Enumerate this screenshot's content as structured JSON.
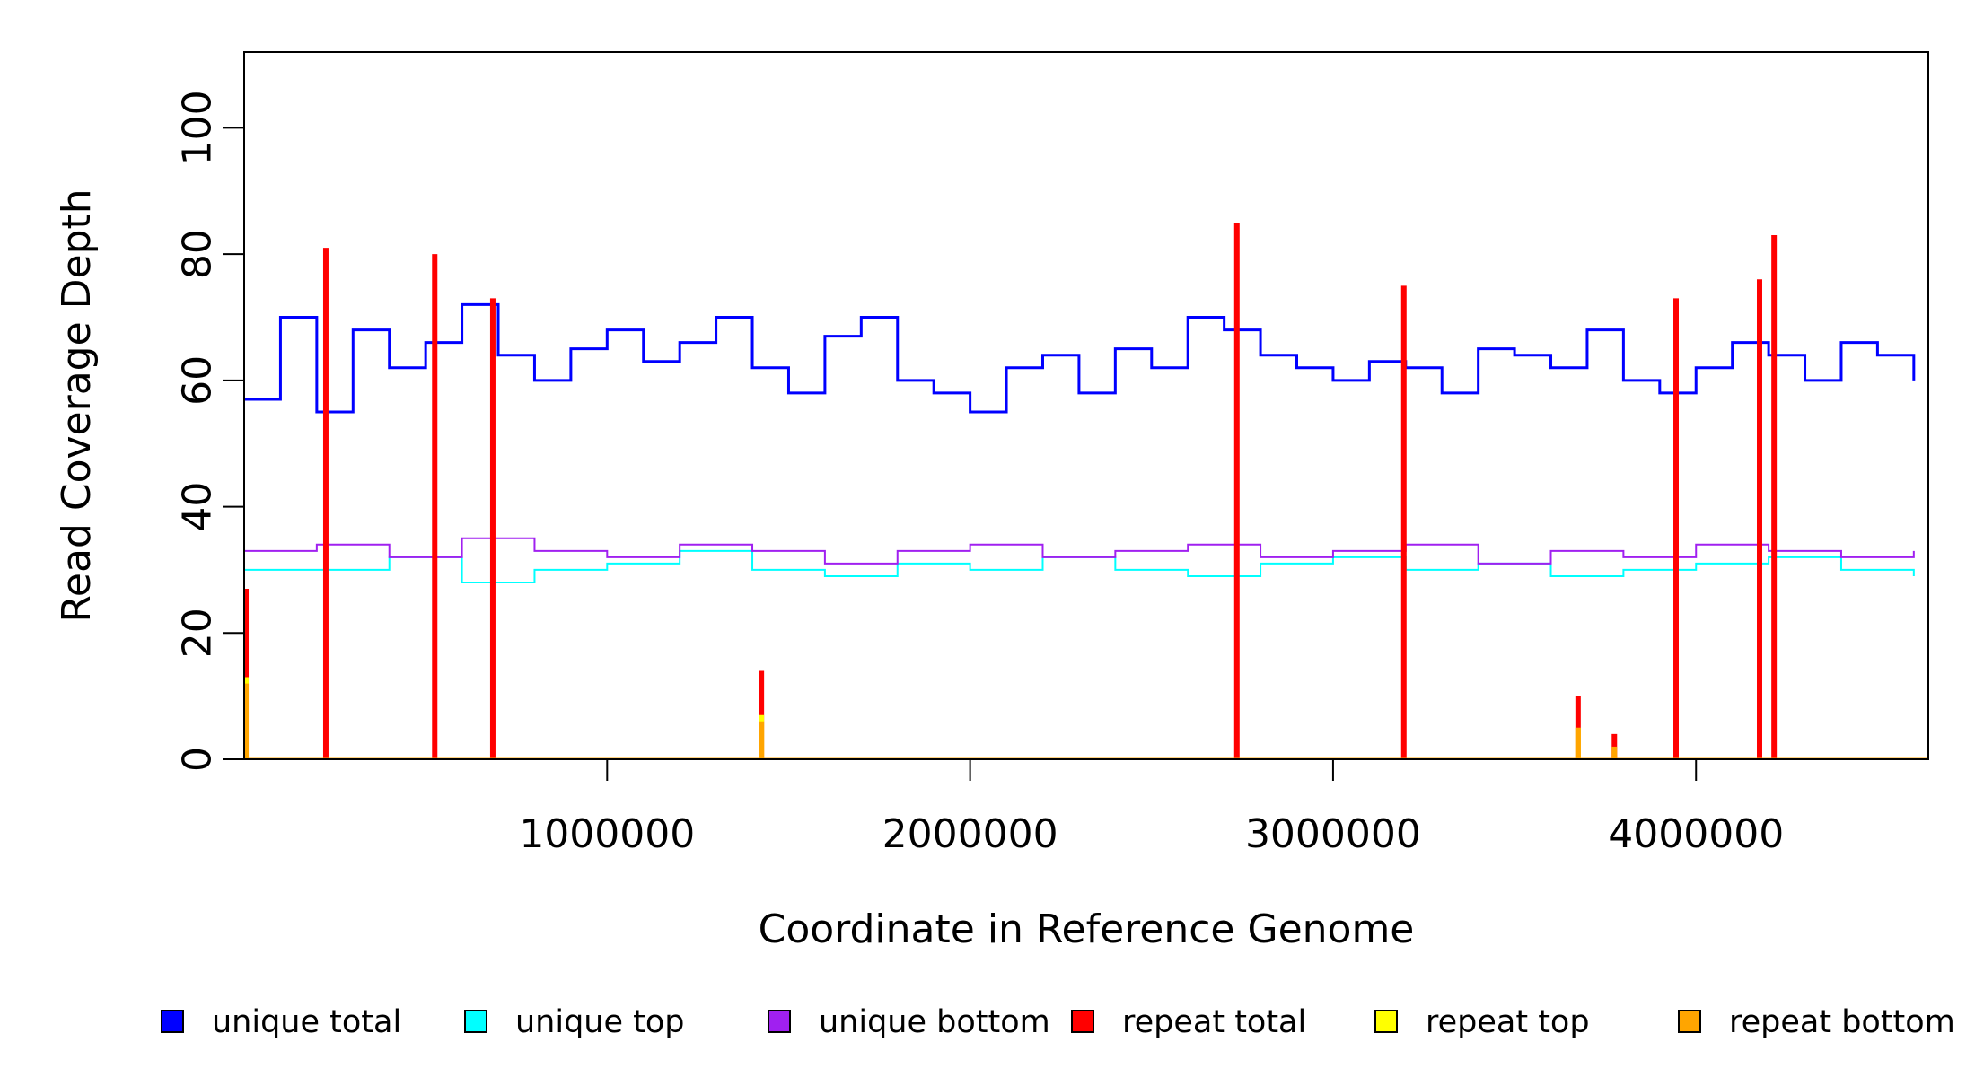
{
  "chart_data": {
    "type": "line",
    "title": "",
    "xlabel": "Coordinate in Reference Genome",
    "ylabel": "Read Coverage Depth",
    "xlim": [
      0,
      4640000
    ],
    "ylim": [
      0,
      112
    ],
    "x_ticks": [
      1000000,
      2000000,
      3000000,
      4000000
    ],
    "x_tick_labels": [
      "1000000",
      "2000000",
      "3000000",
      "4000000"
    ],
    "y_ticks": [
      0,
      20,
      40,
      60,
      80,
      100
    ],
    "y_tick_labels": [
      "0",
      "20",
      "40",
      "60",
      "80",
      "100"
    ],
    "grid": false,
    "legend_placement": "bottom",
    "series": [
      {
        "name": "unique total",
        "color": "#0000FF",
        "x": [
          0,
          100000,
          200000,
          300000,
          400000,
          500000,
          600000,
          700000,
          800000,
          900000,
          1000000,
          1100000,
          1200000,
          1300000,
          1400000,
          1500000,
          1600000,
          1700000,
          1800000,
          1900000,
          2000000,
          2100000,
          2200000,
          2300000,
          2400000,
          2500000,
          2600000,
          2700000,
          2800000,
          2900000,
          3000000,
          3100000,
          3200000,
          3300000,
          3400000,
          3500000,
          3600000,
          3700000,
          3800000,
          3900000,
          4000000,
          4100000,
          4200000,
          4300000,
          4400000,
          4500000,
          4600000
        ],
        "values": [
          57,
          70,
          55,
          68,
          62,
          66,
          72,
          64,
          60,
          65,
          68,
          63,
          66,
          70,
          62,
          58,
          67,
          70,
          60,
          58,
          55,
          62,
          64,
          58,
          65,
          62,
          70,
          68,
          64,
          62,
          60,
          63,
          62,
          58,
          65,
          64,
          62,
          68,
          60,
          58,
          62,
          66,
          64,
          60,
          66,
          64,
          60
        ]
      },
      {
        "name": "unique top",
        "color": "#00FFFF",
        "x": [
          0,
          200000,
          400000,
          600000,
          800000,
          1000000,
          1200000,
          1400000,
          1600000,
          1800000,
          2000000,
          2200000,
          2400000,
          2600000,
          2800000,
          3000000,
          3200000,
          3400000,
          3600000,
          3800000,
          4000000,
          4200000,
          4400000,
          4600000
        ],
        "values": [
          30,
          30,
          32,
          28,
          30,
          31,
          33,
          30,
          29,
          31,
          30,
          32,
          30,
          29,
          31,
          32,
          30,
          31,
          29,
          30,
          31,
          32,
          30,
          29
        ]
      },
      {
        "name": "unique bottom",
        "color": "#A020F0",
        "x": [
          0,
          200000,
          400000,
          600000,
          800000,
          1000000,
          1200000,
          1400000,
          1600000,
          1800000,
          2000000,
          2200000,
          2400000,
          2600000,
          2800000,
          3000000,
          3200000,
          3400000,
          3600000,
          3800000,
          4000000,
          4200000,
          4400000,
          4600000
        ],
        "values": [
          33,
          34,
          32,
          35,
          33,
          32,
          34,
          33,
          31,
          33,
          34,
          32,
          33,
          34,
          32,
          33,
          34,
          31,
          33,
          32,
          34,
          33,
          32,
          33
        ]
      },
      {
        "name": "repeat total",
        "color": "#FF0000",
        "x": [
          5000,
          225000,
          525000,
          685000,
          1425000,
          2735000,
          3195000,
          3675000,
          3775000,
          3945000,
          4175000,
          4215000
        ],
        "values": [
          27,
          81,
          80,
          73,
          14,
          85,
          75,
          10,
          4,
          73,
          76,
          83
        ]
      },
      {
        "name": "repeat top",
        "color": "#FFFF00",
        "x": [
          5000,
          1425000,
          3675000
        ],
        "values": [
          13,
          7,
          5
        ]
      },
      {
        "name": "repeat bottom",
        "color": "#FFA500",
        "x": [
          5000,
          1425000,
          3675000,
          3775000
        ],
        "values": [
          12,
          6,
          5,
          2
        ]
      }
    ]
  },
  "legend": {
    "items": [
      {
        "label": "unique total",
        "color": "#0000FF"
      },
      {
        "label": "unique top",
        "color": "#00FFFF"
      },
      {
        "label": "unique bottom",
        "color": "#A020F0"
      },
      {
        "label": "repeat total",
        "color": "#FF0000"
      },
      {
        "label": "repeat top",
        "color": "#FFFF00"
      },
      {
        "label": "repeat bottom",
        "color": "#FFA500"
      }
    ]
  }
}
